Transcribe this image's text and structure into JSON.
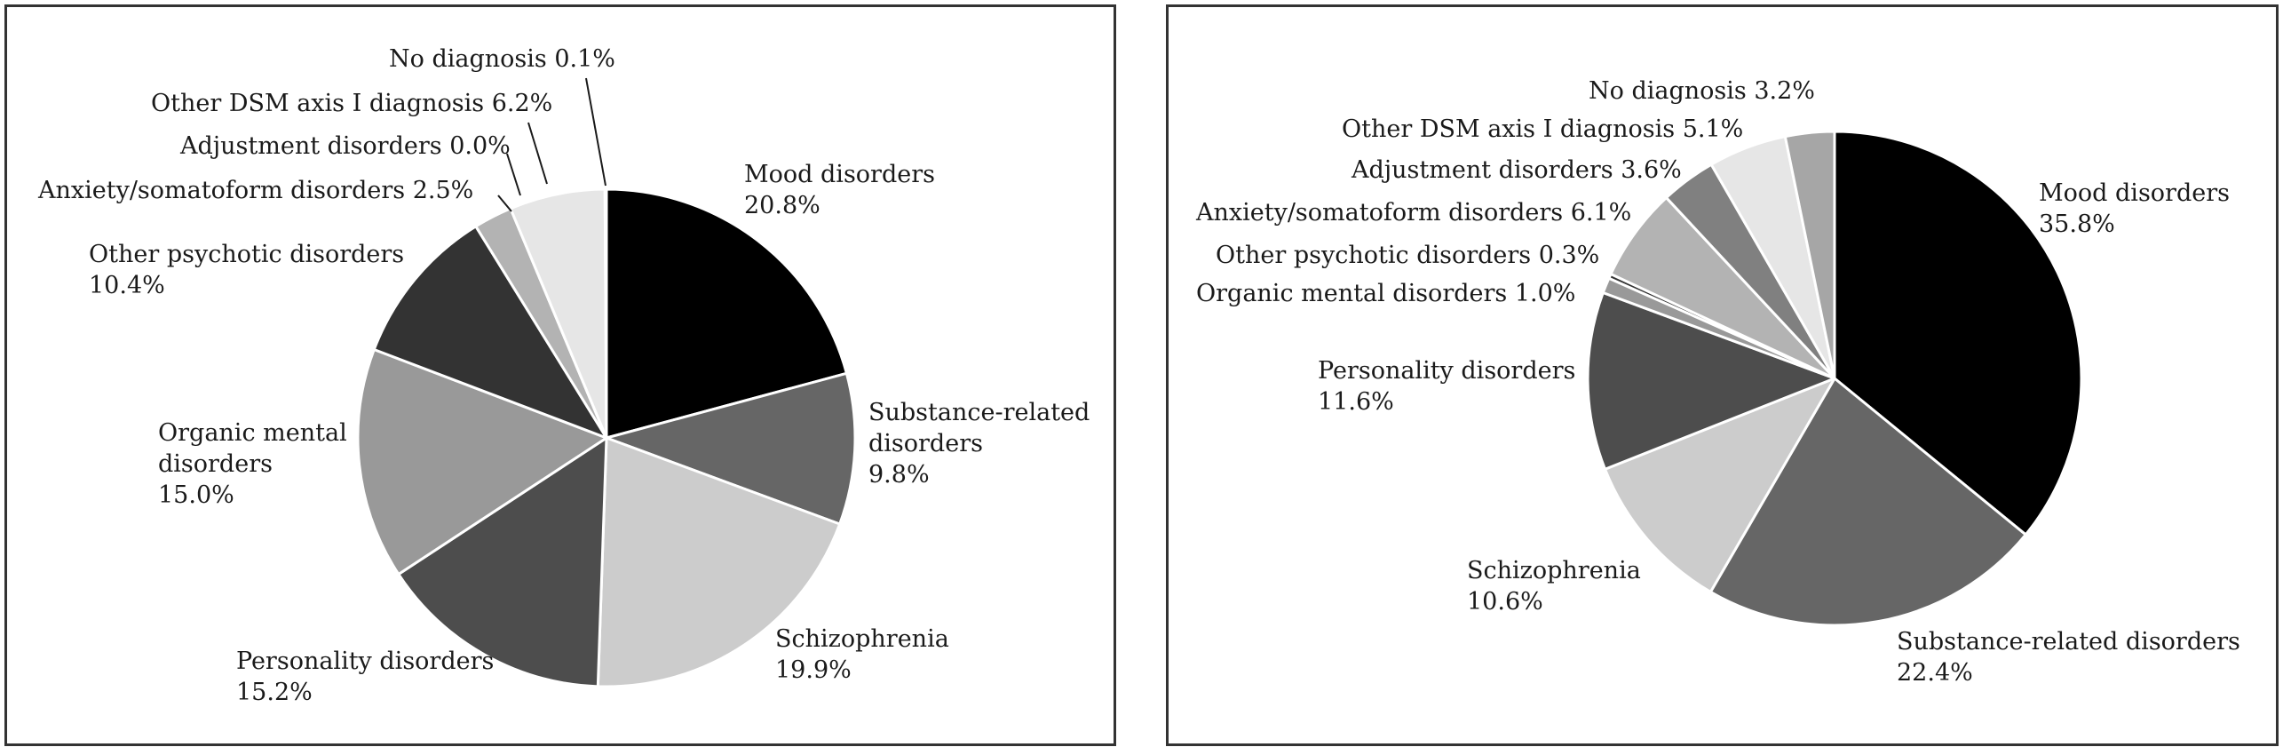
{
  "chart_data": [
    {
      "type": "pie",
      "categories": [
        "Mood disorders",
        "Substance-related disorders",
        "Schizophrenia",
        "Personality disorders",
        "Organic mental disorders",
        "Other psychotic disorders",
        "Anxiety/somatoform disorders",
        "Adjustment disorders",
        "Other DSM axis I diagnosis",
        "No diagnosis"
      ],
      "values": [
        20.8,
        9.8,
        19.9,
        15.2,
        15.0,
        10.4,
        2.5,
        0.0,
        6.2,
        0.1
      ],
      "colors": [
        "#000000",
        "#666666",
        "#cccccc",
        "#4d4d4d",
        "#999999",
        "#333333",
        "#b3b3b3",
        "#8a8a8a",
        "#e6e6e6",
        "#a6a6a6"
      ],
      "labels": [
        [
          "Mood disorders",
          "20.8%"
        ],
        [
          "Substance-related",
          "disorders",
          "9.8%"
        ],
        [
          "Schizophrenia",
          "19.9%"
        ],
        [
          "Personality disorders",
          "15.2%"
        ],
        [
          "Organic mental",
          "disorders",
          "15.0%"
        ],
        [
          "Other psychotic disorders",
          "10.4%"
        ],
        [
          "Anxiety/somatoform disorders 2.5%"
        ],
        [
          "Adjustment disorders 0.0%"
        ],
        [
          "Other DSM axis I diagnosis 6.2%"
        ],
        [
          "No diagnosis 0.1%"
        ]
      ]
    },
    {
      "type": "pie",
      "categories": [
        "Mood disorders",
        "Substance-related disorders",
        "Schizophrenia",
        "Personality disorders",
        "Organic mental disorders",
        "Other psychotic disorders",
        "Anxiety/somatoform disorders",
        "Adjustment disorders",
        "Other DSM axis I diagnosis",
        "No diagnosis"
      ],
      "values": [
        35.8,
        22.4,
        10.6,
        11.6,
        1.0,
        0.3,
        6.1,
        3.6,
        5.1,
        3.2
      ],
      "colors": [
        "#000000",
        "#666666",
        "#cccccc",
        "#4d4d4d",
        "#999999",
        "#333333",
        "#b3b3b3",
        "#808080",
        "#e6e6e6",
        "#a6a6a6"
      ],
      "labels": [
        [
          "Mood disorders",
          "35.8%"
        ],
        [
          "Substance-related disorders",
          "22.4%"
        ],
        [
          "Schizophrenia",
          "10.6%"
        ],
        [
          "Personality disorders",
          "11.6%"
        ],
        [
          "Organic mental disorders 1.0%"
        ],
        [
          "Other psychotic disorders 0.3%"
        ],
        [
          "Anxiety/somatoform disorders 6.1%"
        ],
        [
          "Adjustment disorders 3.6%"
        ],
        [
          "Other DSM axis I diagnosis 5.1%"
        ],
        [
          "No diagnosis 3.2%"
        ]
      ]
    }
  ]
}
